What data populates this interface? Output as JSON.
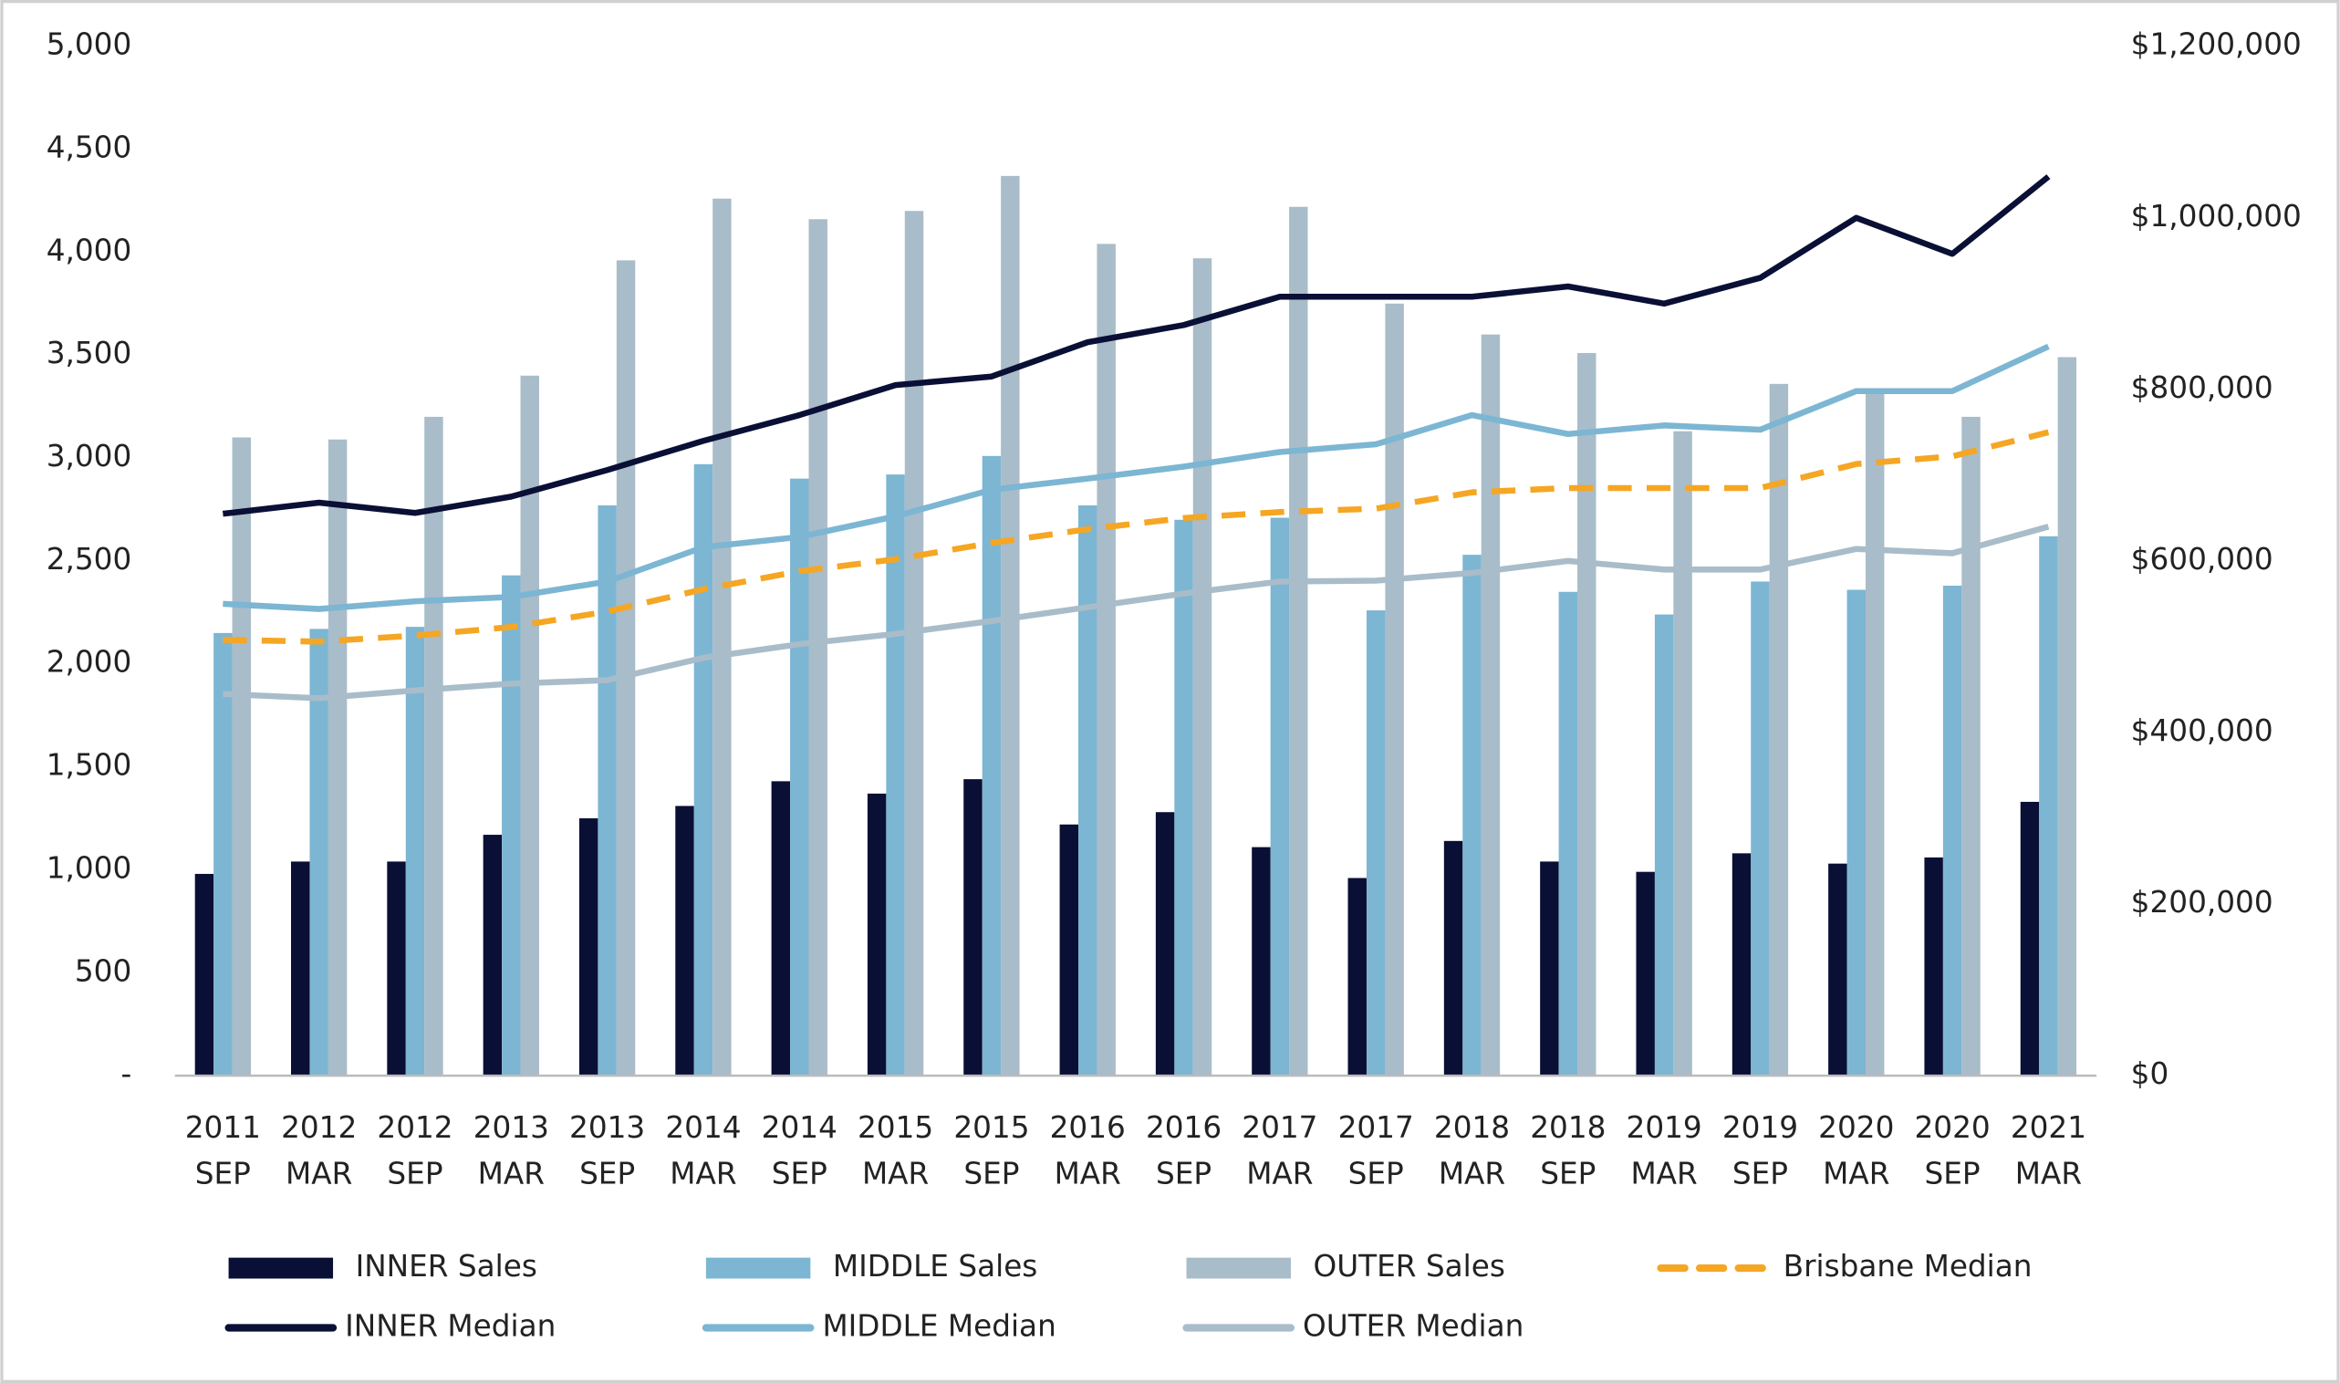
{
  "chart_data": {
    "type": "combo",
    "categories": [
      [
        "2011",
        "SEP"
      ],
      [
        "2012",
        "MAR"
      ],
      [
        "2012",
        "SEP"
      ],
      [
        "2013",
        "MAR"
      ],
      [
        "2013",
        "SEP"
      ],
      [
        "2014",
        "MAR"
      ],
      [
        "2014",
        "SEP"
      ],
      [
        "2015",
        "MAR"
      ],
      [
        "2015",
        "SEP"
      ],
      [
        "2016",
        "MAR"
      ],
      [
        "2016",
        "SEP"
      ],
      [
        "2017",
        "MAR"
      ],
      [
        "2017",
        "SEP"
      ],
      [
        "2018",
        "MAR"
      ],
      [
        "2018",
        "SEP"
      ],
      [
        "2019",
        "MAR"
      ],
      [
        "2019",
        "SEP"
      ],
      [
        "2020",
        "MAR"
      ],
      [
        "2020",
        "SEP"
      ],
      [
        "2021",
        "MAR"
      ]
    ],
    "series": [
      {
        "name": "INNER Sales",
        "kind": "bar",
        "color": "#0a0f35",
        "values": [
          980,
          1040,
          1040,
          1170,
          1250,
          1310,
          1430,
          1370,
          1440,
          1220,
          1280,
          1110,
          960,
          1140,
          1040,
          990,
          1080,
          1030,
          1060,
          1330
        ]
      },
      {
        "name": "MIDDLE Sales",
        "kind": "bar",
        "color": "#7cb6d3",
        "values": [
          2150,
          2170,
          2180,
          2430,
          2770,
          2970,
          2900,
          2920,
          3010,
          2770,
          2700,
          2710,
          2260,
          2530,
          2350,
          2240,
          2400,
          2360,
          2380,
          2620
        ]
      },
      {
        "name": "OUTER Sales",
        "kind": "bar",
        "color": "#a9bcc9",
        "values": [
          3100,
          3090,
          3200,
          3400,
          3960,
          4260,
          4160,
          4200,
          4370,
          4040,
          3970,
          4220,
          3750,
          3600,
          3510,
          3130,
          3360,
          3330,
          3200,
          3490
        ]
      },
      {
        "name": "Brisbane Median",
        "kind": "line",
        "axis": "y2",
        "dashed": true,
        "color": "#f5a623",
        "values": [
          508000,
          506000,
          513000,
          523000,
          541000,
          567000,
          588000,
          602000,
          621000,
          637000,
          650000,
          657000,
          661000,
          680000,
          685000,
          685000,
          685000,
          713000,
          722000,
          750000
        ]
      },
      {
        "name": "INNER Median",
        "kind": "line",
        "axis": "y2",
        "dashed": false,
        "color": "#0a0f35",
        "values": [
          655000,
          668000,
          656000,
          675000,
          706000,
          740000,
          770000,
          805000,
          815000,
          855000,
          875000,
          908000,
          908000,
          908000,
          920000,
          900000,
          930000,
          1000000,
          958000,
          1048000
        ]
      },
      {
        "name": "MIDDLE Median",
        "kind": "line",
        "axis": "y2",
        "dashed": false,
        "color": "#7cb6d3",
        "values": [
          550000,
          544000,
          553000,
          558000,
          576000,
          616000,
          628000,
          652000,
          683000,
          696000,
          710000,
          727000,
          736000,
          770000,
          748000,
          758000,
          753000,
          798000,
          798000,
          850000
        ]
      },
      {
        "name": "OUTER Median",
        "kind": "line",
        "axis": "y2",
        "dashed": false,
        "color": "#a9bcc9",
        "values": [
          445000,
          440000,
          449000,
          457000,
          461000,
          487000,
          503000,
          515000,
          530000,
          546000,
          562000,
          576000,
          577000,
          586000,
          600000,
          590000,
          590000,
          614000,
          609000,
          640000
        ]
      }
    ],
    "ylim": [
      0,
      5000
    ],
    "yticks": [
      {
        "value": 0,
        "label": "-"
      },
      500,
      {
        "value": 1000,
        "label": "1,000"
      },
      {
        "value": 1500,
        "label": "1,500"
      },
      {
        "value": 2000,
        "label": "2,000"
      },
      {
        "value": 2500,
        "label": "2,500"
      },
      {
        "value": 3000,
        "label": "3,000"
      },
      {
        "value": 3500,
        "label": "3,500"
      },
      {
        "value": 4000,
        "label": "4,000"
      },
      {
        "value": 4500,
        "label": "4,500"
      },
      {
        "value": 5000,
        "label": "5,000"
      }
    ],
    "y2lim": [
      0,
      1200000
    ],
    "y2ticks": [
      {
        "value": 0,
        "label": "$0"
      },
      {
        "value": 200000,
        "label": "$200,000"
      },
      {
        "value": 400000,
        "label": "$400,000"
      },
      {
        "value": 600000,
        "label": "$600,000"
      },
      {
        "value": 800000,
        "label": "$800,000"
      },
      {
        "value": 1000000,
        "label": "$1,000,000"
      },
      {
        "value": 1200000,
        "label": "$1,200,000"
      }
    ],
    "grid": false,
    "legend": "bottom"
  }
}
